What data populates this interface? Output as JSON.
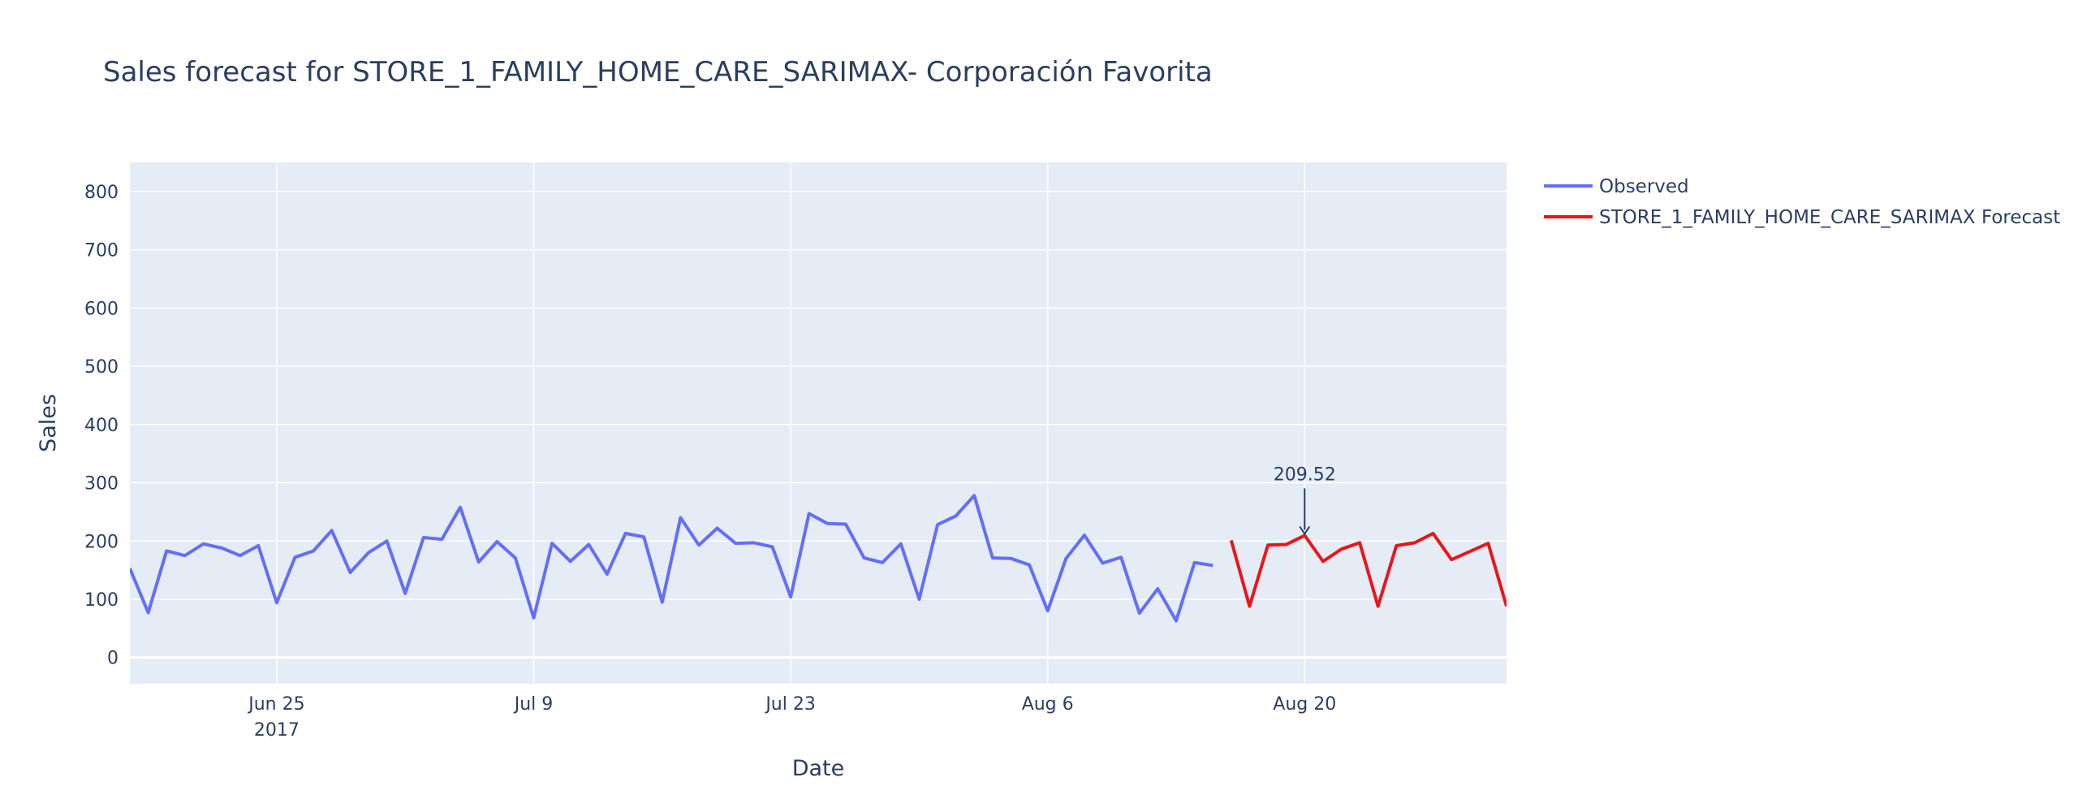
{
  "chart_data": {
    "type": "line",
    "title": "Sales forecast for STORE_1_FAMILY_HOME_CARE_SARIMAX- Corporación Favorita",
    "xlabel": "Date",
    "ylabel": "Sales",
    "x_range": [
      "2017-06-17",
      "2017-08-31"
    ],
    "ylim": [
      -45,
      850
    ],
    "y_ticks": [
      0,
      100,
      200,
      300,
      400,
      500,
      600,
      700,
      800
    ],
    "x_ticks": [
      {
        "date": "2017-06-25",
        "label": "Jun 25",
        "sublabel": "2017"
      },
      {
        "date": "2017-07-09",
        "label": "Jul 9",
        "sublabel": ""
      },
      {
        "date": "2017-07-23",
        "label": "Jul 23",
        "sublabel": ""
      },
      {
        "date": "2017-08-06",
        "label": "Aug 6",
        "sublabel": ""
      },
      {
        "date": "2017-08-20",
        "label": "Aug 20",
        "sublabel": ""
      }
    ],
    "grid": true,
    "legend_position": "right",
    "colors": {
      "plot_bg": "#e5ecf6",
      "grid": "#ffffff",
      "text": "#2a3f5f"
    },
    "series": [
      {
        "name": "Observed",
        "color": "#636efa",
        "x": [
          "2017-06-17",
          "2017-06-18",
          "2017-06-19",
          "2017-06-20",
          "2017-06-21",
          "2017-06-22",
          "2017-06-23",
          "2017-06-24",
          "2017-06-25",
          "2017-06-26",
          "2017-06-27",
          "2017-06-28",
          "2017-06-29",
          "2017-06-30",
          "2017-07-01",
          "2017-07-02",
          "2017-07-03",
          "2017-07-04",
          "2017-07-05",
          "2017-07-06",
          "2017-07-07",
          "2017-07-08",
          "2017-07-09",
          "2017-07-10",
          "2017-07-11",
          "2017-07-12",
          "2017-07-13",
          "2017-07-14",
          "2017-07-15",
          "2017-07-16",
          "2017-07-17",
          "2017-07-18",
          "2017-07-19",
          "2017-07-20",
          "2017-07-21",
          "2017-07-22",
          "2017-07-23",
          "2017-07-24",
          "2017-07-25",
          "2017-07-26",
          "2017-07-27",
          "2017-07-28",
          "2017-07-29",
          "2017-07-30",
          "2017-07-31",
          "2017-08-01",
          "2017-08-02",
          "2017-08-03",
          "2017-08-04",
          "2017-08-05",
          "2017-08-06",
          "2017-08-07",
          "2017-08-08",
          "2017-08-09",
          "2017-08-10",
          "2017-08-11",
          "2017-08-12",
          "2017-08-13",
          "2017-08-14",
          "2017-08-15"
        ],
        "values": [
          153,
          77,
          183,
          175,
          195,
          188,
          175,
          192,
          94,
          172,
          183,
          218,
          146,
          180,
          200,
          110,
          206,
          203,
          258,
          164,
          199,
          171,
          68,
          196,
          165,
          194,
          143,
          213,
          207,
          95,
          240,
          193,
          222,
          196,
          197,
          190,
          104,
          247,
          230,
          229,
          171,
          163,
          195,
          100,
          228,
          243,
          278,
          171,
          170,
          159,
          80,
          170,
          210,
          162,
          172,
          76,
          118,
          63,
          163,
          158
        ]
      },
      {
        "name": "STORE_1_FAMILY_HOME_CARE_SARIMAX Forecast",
        "color": "#e8161b",
        "x": [
          "2017-08-16",
          "2017-08-17",
          "2017-08-18",
          "2017-08-19",
          "2017-08-20",
          "2017-08-21",
          "2017-08-22",
          "2017-08-23",
          "2017-08-24",
          "2017-08-25",
          "2017-08-26",
          "2017-08-27",
          "2017-08-28",
          "2017-08-29",
          "2017-08-30",
          "2017-08-31"
        ],
        "values": [
          201,
          88,
          193,
          194,
          209.52,
          165,
          186,
          197,
          88,
          192,
          197,
          213,
          168,
          182,
          196,
          88
        ]
      }
    ],
    "annotations": [
      {
        "x": "2017-08-20",
        "y": 209.52,
        "text": "209.52"
      }
    ]
  }
}
